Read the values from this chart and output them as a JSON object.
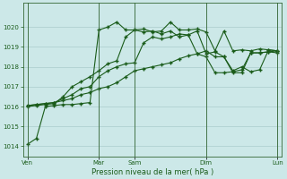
{
  "xlabel": "Pression niveau de la mer( hPa )",
  "bg_color": "#cce8e8",
  "grid_color": "#aacccc",
  "line_color": "#1a5c1a",
  "ylim": [
    1013.5,
    1021.2
  ],
  "yticks": [
    1014,
    1015,
    1016,
    1017,
    1018,
    1019,
    1020
  ],
  "xtick_labels": [
    "Ven",
    "Mar",
    "Sam",
    "Dim",
    "Lun"
  ],
  "xtick_positions": [
    0,
    8,
    12,
    20,
    28
  ],
  "vlines": [
    0,
    8,
    12,
    20,
    28
  ],
  "lines": [
    [
      1014.1,
      1014.4,
      1016.0,
      1016.05,
      1016.1,
      1016.1,
      1016.15,
      1016.2,
      1019.85,
      1020.0,
      1020.25,
      1019.85,
      1019.85,
      1019.9,
      1019.75,
      1019.8,
      1020.25,
      1019.85,
      1019.85,
      1019.9,
      1019.75,
      1018.8,
      1019.8,
      1018.8,
      1018.85,
      1018.8,
      1018.9,
      1018.85,
      1018.8
    ],
    [
      1016.0,
      1016.05,
      1016.1,
      1016.15,
      1016.5,
      1017.0,
      1017.25,
      1017.5,
      1017.8,
      1018.15,
      1018.3,
      1019.5,
      1019.85,
      1019.75,
      1019.8,
      1019.65,
      1019.8,
      1019.5,
      1019.6,
      1019.8,
      1018.65,
      1018.75,
      1018.5,
      1017.8,
      1018.0,
      1017.75,
      1017.85,
      1018.85,
      1018.8
    ],
    [
      1016.05,
      1016.1,
      1016.15,
      1016.2,
      1016.4,
      1016.6,
      1016.9,
      1017.0,
      1017.5,
      1017.8,
      1018.0,
      1018.15,
      1018.2,
      1019.2,
      1019.5,
      1019.4,
      1019.5,
      1019.65,
      1019.6,
      1018.65,
      1018.5,
      1017.7,
      1017.7,
      1017.75,
      1017.85,
      1018.7,
      1018.7,
      1018.75,
      1018.7
    ],
    [
      1016.05,
      1016.1,
      1016.15,
      1016.2,
      1016.3,
      1016.4,
      1016.6,
      1016.7,
      1016.9,
      1017.0,
      1017.2,
      1017.5,
      1017.8,
      1017.9,
      1018.0,
      1018.1,
      1018.2,
      1018.4,
      1018.55,
      1018.65,
      1018.8,
      1018.5,
      1018.5,
      1017.7,
      1017.7,
      1018.7,
      1018.7,
      1018.75,
      1018.8
    ]
  ],
  "n_points": 29
}
